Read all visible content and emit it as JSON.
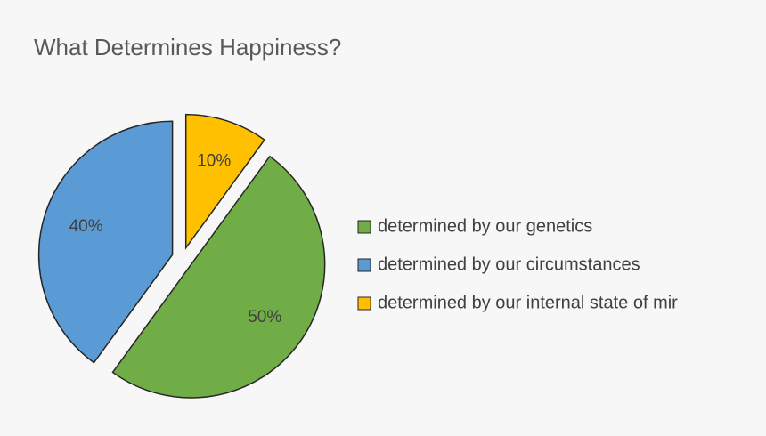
{
  "chart_data": {
    "type": "pie",
    "title": "What Determines Happiness?",
    "categories": [
      "determined by our genetics",
      "determined by our circumstances",
      "determined by our internal state of mir"
    ],
    "values": [
      50,
      40,
      10
    ],
    "value_labels": [
      "50%",
      "40%",
      "10%"
    ],
    "colors": [
      "#70ad47",
      "#5b9bd5",
      "#ffc000"
    ],
    "legend": "right"
  }
}
